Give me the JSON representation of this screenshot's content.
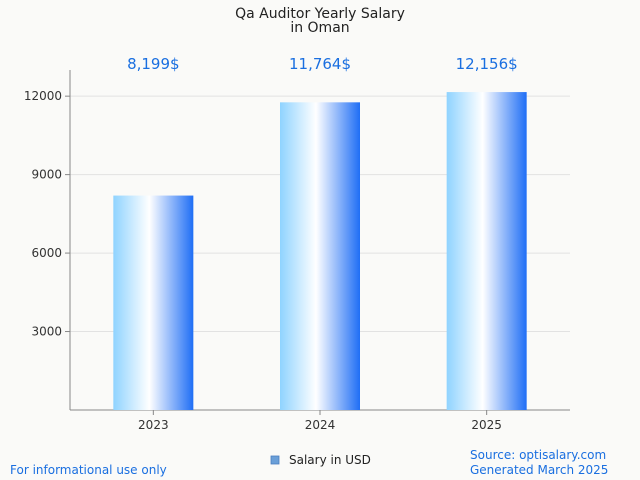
{
  "chart_data": {
    "type": "bar",
    "title": "Qa Auditor Yearly Salary",
    "subtitle": "in Oman",
    "categories": [
      "2023",
      "2024",
      "2025"
    ],
    "series": [
      {
        "name": "Salary in USD",
        "values": [
          8199,
          11764,
          12156
        ]
      }
    ],
    "value_labels": [
      "8,199$",
      "11,764$",
      "12,156$"
    ],
    "ylim": [
      0,
      13000
    ],
    "yticks": [
      3000,
      6000,
      9000,
      12000
    ],
    "grid": true,
    "legend_position": "bottom"
  },
  "colors": {
    "bar_left": "#8fd3ff",
    "bar_mid": "#ffffff",
    "bar_right": "#1f6ef5",
    "value_label": "#1a6fe0",
    "legend_swatch": "#6a9fd8"
  },
  "footer": {
    "left": "For informational use only",
    "source": "Source: optisalary.com",
    "generated": "Generated March 2025"
  }
}
